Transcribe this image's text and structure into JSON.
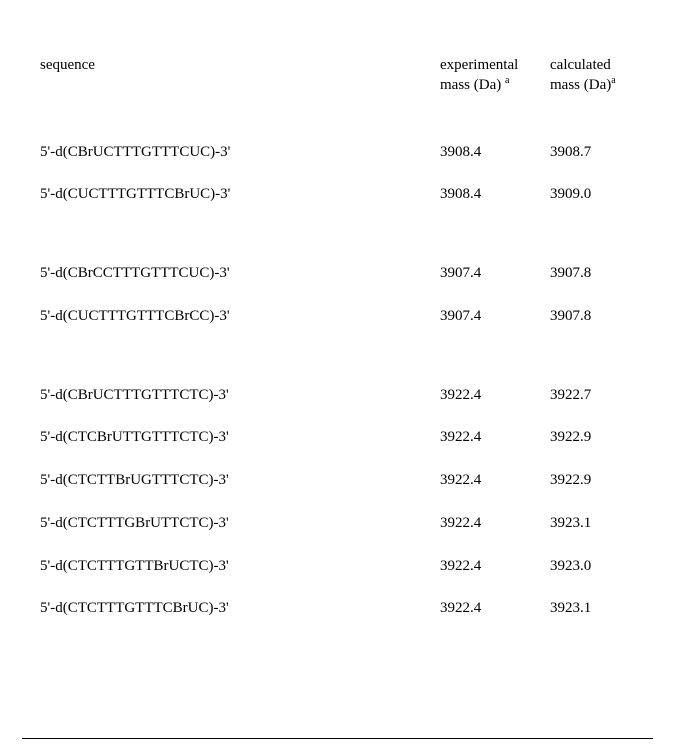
{
  "headers": {
    "sequence": "sequence",
    "experimental_line1": "experimental",
    "experimental_line2_pre": "mass (Da)",
    "calculated_line1": "calculated",
    "calculated_line2_pre": "mass (Da)",
    "footnote_mark": "a"
  },
  "groups": [
    {
      "rows": [
        {
          "sequence": "5'-d(CBrUCTTTGTTTCUC)-3'",
          "exp": "3908.4",
          "calc": "3908.7"
        },
        {
          "sequence": "5'-d(CUCTTTGTTTCBrUC)-3'",
          "exp": "3908.4",
          "calc": "3909.0"
        }
      ]
    },
    {
      "rows": [
        {
          "sequence": "5'-d(CBrCCTTTGTTTCUC)-3'",
          "exp": "3907.4",
          "calc": "3907.8"
        },
        {
          "sequence": "5'-d(CUCTTTGTTTCBrCC)-3'",
          "exp": "3907.4",
          "calc": "3907.8"
        }
      ]
    },
    {
      "rows": [
        {
          "sequence": "5'-d(CBrUCTTTGTTTCTC)-3'",
          "exp": "3922.4",
          "calc": "3922.7"
        },
        {
          "sequence": "5'-d(CTCBrUTTGTTTCTC)-3'",
          "exp": "3922.4",
          "calc": "3922.9"
        },
        {
          "sequence": "5'-d(CTCTTBrUGTTTCTC)-3'",
          "exp": "3922.4",
          "calc": "3922.9"
        },
        {
          "sequence": "5'-d(CTCTTTGBrUTTCTC)-3'",
          "exp": "3922.4",
          "calc": "3923.1"
        },
        {
          "sequence": "5'-d(CTCTTTGTTBrUCTC)-3'",
          "exp": "3922.4",
          "calc": "3923.0"
        },
        {
          "sequence": "5'-d(CTCTTTGTTTCBrUC)-3'",
          "exp": "3922.4",
          "calc": "3923.1"
        }
      ]
    }
  ]
}
